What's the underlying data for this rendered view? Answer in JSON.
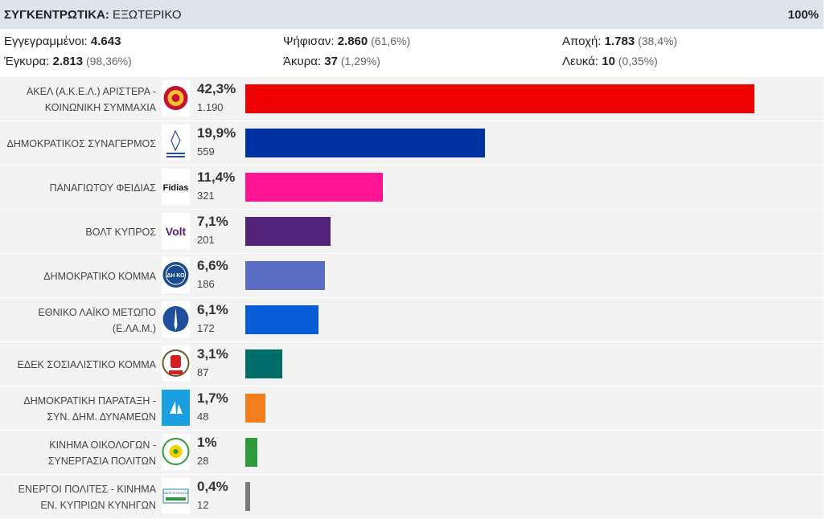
{
  "header": {
    "title_bold": "ΣΥΓΚΕΝΤΡΩΤΙΚΑ:",
    "title_rest": " ΕΞΩΤΕΡΙΚΟ",
    "percent": "100%"
  },
  "stats": {
    "registered_label": "Εγγεγραμμένοι: ",
    "registered_value": "4.643",
    "voted_label": "Ψήφισαν: ",
    "voted_value": "2.860",
    "voted_pct": " (61,6%)",
    "abstention_label": "Αποχή: ",
    "abstention_value": "1.783",
    "abstention_pct": " (38,4%)",
    "valid_label": "Έγκυρα: ",
    "valid_value": "2.813",
    "valid_pct": " (98,36%)",
    "invalid_label": "Άκυρα: ",
    "invalid_value": "37",
    "invalid_pct": " (1,29%)",
    "blank_label": "Λευκά: ",
    "blank_value": "10",
    "blank_pct": " (0,35%)"
  },
  "chart_data": {
    "type": "bar",
    "orientation": "horizontal",
    "xlim": [
      0,
      42.3
    ],
    "categories": [
      "ΑΚΕΛ (Α.Κ.Ε.Λ.) ΑΡΙΣΤΕΡΑ - ΚΟΙΝΩΝΙΚΗ ΣΥΜΜΑΧΙΑ",
      "ΔΗΜΟΚΡΑΤΙΚΟΣ ΣΥΝΑΓΕΡΜΟΣ",
      "ΠΑΝΑΓΙΩΤΟΥ ΦΕΙΔΙΑΣ",
      "ΒΟΛΤ ΚΥΠΡΟΣ",
      "ΔΗΜΟΚΡΑΤΙΚΟ ΚΟΜΜΑ",
      "ΕΘΝΙΚΟ ΛΑΪΚΟ ΜΕΤΩΠΟ (Ε.ΛΑ.Μ.)",
      "ΕΔΕΚ ΣΟΣΙΑΛΙΣΤΙΚΟ ΚΟΜΜΑ",
      "ΔΗΜΟΚΡΑΤΙΚΗ ΠΑΡΑΤΑΞΗ - ΣΥΝ. ΔΗΜ. ΔΥΝΑΜΕΩΝ",
      "ΚΙΝΗΜΑ ΟΙΚΟΛΟΓΩΝ - ΣΥΝΕΡΓΑΣΙΑ ΠΟΛΙΤΩΝ",
      "ΕΝΕΡΓΟΙ ΠΟΛΙΤΕΣ - ΚΙΝΗΜΑ ΕΝ. ΚΥΠΡΙΩΝ ΚΥΝΗΓΩΝ"
    ],
    "rows": [
      {
        "name_lines": [
          "ΑΚΕΛ (Α.Κ.Ε.Λ.) ΑΡΙΣΤΕΡΑ -",
          "ΚΟΙΝΩΝΙΚΗ ΣΥΜΜΑΧΙΑ"
        ],
        "pct": 42.3,
        "pct_label": "42,3%",
        "votes": "1.190",
        "color": "#ee0000",
        "logo": "akel-logo"
      },
      {
        "name_lines": [
          "ΔΗΜΟΚΡΑΤΙΚΟΣ ΣΥΝΑΓΕΡΜΟΣ"
        ],
        "pct": 19.9,
        "pct_label": "19,9%",
        "votes": "559",
        "color": "#0033a0",
        "logo": "disy-logo"
      },
      {
        "name_lines": [
          "ΠΑΝΑΓΙΩΤΟΥ ΦΕΙΔΙΑΣ"
        ],
        "pct": 11.4,
        "pct_label": "11,4%",
        "votes": "321",
        "color": "#ff1493",
        "logo": "fidias-logo",
        "logo_text": "Fidias"
      },
      {
        "name_lines": [
          "ΒΟΛΤ ΚΥΠΡΟΣ"
        ],
        "pct": 7.1,
        "pct_label": "7,1%",
        "votes": "201",
        "color": "#502379",
        "logo": "volt-logo",
        "logo_text": "Volt"
      },
      {
        "name_lines": [
          "ΔΗΜΟΚΡΑΤΙΚΟ ΚΟΜΜΑ"
        ],
        "pct": 6.6,
        "pct_label": "6,6%",
        "votes": "186",
        "color": "#5b6dc3",
        "logo": "diko-logo",
        "logo_text": "ΔΗ ΚΟ"
      },
      {
        "name_lines": [
          "ΕΘΝΙΚΟ ΛΑΪΚΟ ΜΕΤΩΠΟ",
          "(Ε.ΛΑ.Μ.)"
        ],
        "pct": 6.1,
        "pct_label": "6,1%",
        "votes": "172",
        "color": "#0a5cd6",
        "logo": "elam-logo"
      },
      {
        "name_lines": [
          "ΕΔΕΚ ΣΟΣΙΑΛΙΣΤΙΚΟ ΚΟΜΜΑ"
        ],
        "pct": 3.1,
        "pct_label": "3,1%",
        "votes": "87",
        "color": "#006d6a",
        "logo": "edek-logo"
      },
      {
        "name_lines": [
          "ΔΗΜΟΚΡΑΤΙΚΗ ΠΑΡΑΤΑΞΗ -",
          "ΣΥΝ. ΔΗΜ. ΔΥΝΑΜΕΩΝ"
        ],
        "pct": 1.7,
        "pct_label": "1,7%",
        "votes": "48",
        "color": "#f47d1e",
        "logo": "dipa-logo"
      },
      {
        "name_lines": [
          "ΚΙΝΗΜΑ ΟΙΚΟΛΟΓΩΝ -",
          "ΣΥΝΕΡΓΑΣΙΑ ΠΟΛΙΤΩΝ"
        ],
        "pct": 1.0,
        "pct_label": "1%",
        "votes": "28",
        "color": "#2e9a3b",
        "logo": "ecologists-logo"
      },
      {
        "name_lines": [
          "ΕΝΕΡΓΟΙ ΠΟΛΙΤΕΣ - ΚΙΝΗΜΑ",
          "ΕΝ. ΚΥΠΡΙΩΝ ΚΥΝΗΓΩΝ"
        ],
        "pct": 0.4,
        "pct_label": "0,4%",
        "votes": "12",
        "color": "#7a7a7a",
        "logo": "energoi-politeis-logo",
        "logo_text": "ΕΝΕΡΓΟΙ ΠΟΛΙΤΕΣ"
      }
    ]
  }
}
